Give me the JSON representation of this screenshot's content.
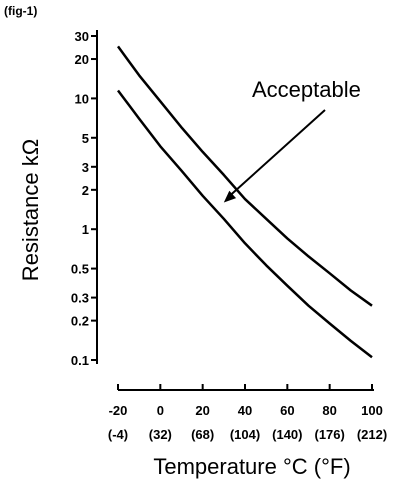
{
  "figure_label": "(fig-1)",
  "chart_data": {
    "type": "line",
    "title": "",
    "xlabel": "Temperature °C (°F)",
    "ylabel": "Resistance kΩ",
    "y_scale": "log",
    "xlim": [
      -20,
      100
    ],
    "ylim": [
      0.1,
      30
    ],
    "y_ticks": [
      0.1,
      0.2,
      0.3,
      0.5,
      1,
      2,
      3,
      5,
      10,
      20,
      30
    ],
    "y_tick_labels": [
      "0.1",
      "0.2",
      "0.3",
      "0.5",
      "1",
      "2",
      "3",
      "5",
      "10",
      "20",
      "30"
    ],
    "x_ticks": [
      -20,
      0,
      20,
      40,
      60,
      80,
      100
    ],
    "x_tick_labels_c": [
      "-20",
      "0",
      "20",
      "40",
      "60",
      "80",
      "100"
    ],
    "x_tick_labels_f": [
      "(-4)",
      "(32)",
      "(68)",
      "(104)",
      "(140)",
      "(176)",
      "(212)"
    ],
    "grid": false,
    "series": [
      {
        "role": "upper-limit",
        "x": [
          -20,
          -10,
          0,
          10,
          20,
          30,
          40,
          50,
          60,
          70,
          80,
          90,
          100
        ],
        "values": [
          25,
          15,
          9.5,
          6.0,
          3.9,
          2.6,
          1.7,
          1.2,
          0.85,
          0.62,
          0.46,
          0.34,
          0.26
        ]
      },
      {
        "role": "lower-limit",
        "x": [
          -20,
          -10,
          0,
          10,
          20,
          30,
          40,
          50,
          60,
          70,
          80,
          90,
          100
        ],
        "values": [
          11.5,
          7.0,
          4.3,
          2.8,
          1.8,
          1.2,
          0.78,
          0.53,
          0.37,
          0.26,
          0.19,
          0.14,
          0.105
        ]
      }
    ],
    "annotation": {
      "text": "Acceptable",
      "points_to": {
        "x": 30,
        "y": 1.6
      }
    }
  }
}
